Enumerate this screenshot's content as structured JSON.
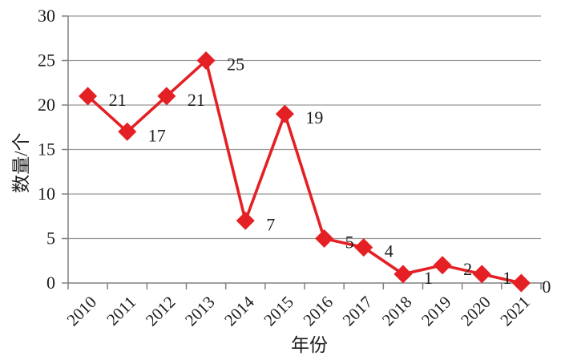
{
  "chart_data": {
    "type": "line",
    "title": "",
    "xlabel": "年份",
    "ylabel": "数量/个",
    "categories": [
      "2010",
      "2011",
      "2012",
      "2013",
      "2014",
      "2015",
      "2016",
      "2017",
      "2018",
      "2019",
      "2020",
      "2021"
    ],
    "values": [
      21,
      17,
      21,
      25,
      7,
      19,
      5,
      4,
      1,
      2,
      1,
      0
    ],
    "data_labels": [
      "21",
      "17",
      "21",
      "25",
      "7",
      "19",
      "5",
      "4",
      "1",
      "2",
      "1",
      "0"
    ],
    "ylim": [
      0,
      30
    ],
    "yticks": [
      0,
      5,
      10,
      15,
      20,
      25,
      30
    ],
    "grid": true,
    "legend": "none",
    "marker": "diamond",
    "colors": {
      "series": "#e42025",
      "grid": "#999999",
      "axis": "#808080",
      "text": "#1c1c1c",
      "background": "#ffffff"
    }
  }
}
